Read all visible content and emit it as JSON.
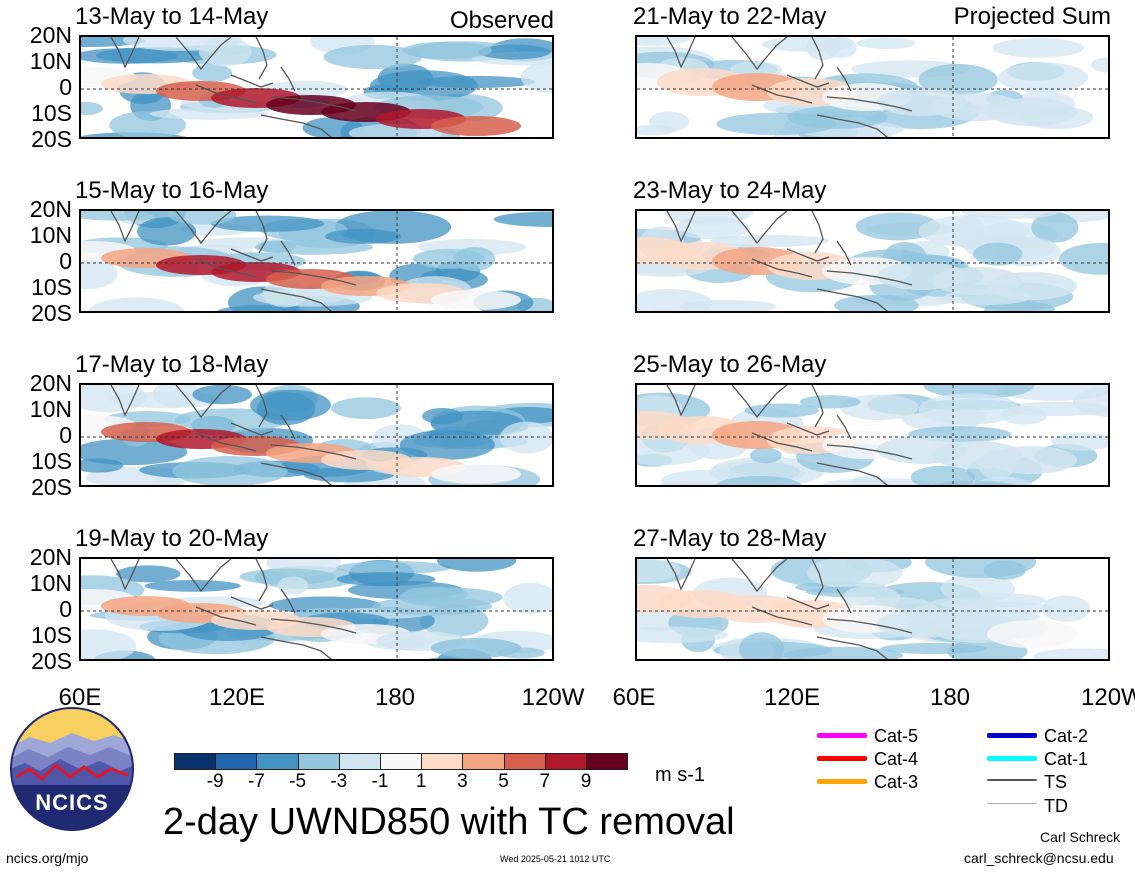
{
  "panels": {
    "left": [
      {
        "title": "13-May to 14-May",
        "tag": "Observed"
      },
      {
        "title": "15-May to 16-May",
        "tag": ""
      },
      {
        "title": "17-May to 18-May",
        "tag": ""
      },
      {
        "title": "19-May to 20-May",
        "tag": ""
      }
    ],
    "right": [
      {
        "title": "21-May to 22-May",
        "tag": "Projected Sum"
      },
      {
        "title": "23-May to 24-May",
        "tag": ""
      },
      {
        "title": "25-May to 26-May",
        "tag": ""
      },
      {
        "title": "27-May to 28-May",
        "tag": ""
      }
    ]
  },
  "lat_labels": [
    "20N",
    "10N",
    "0",
    "10S",
    "20S"
  ],
  "lon_labels": [
    "60E",
    "120E",
    "180",
    "120W"
  ],
  "colorbar": {
    "colors": [
      "#08306b",
      "#2166ac",
      "#4393c3",
      "#92c5de",
      "#d1e5f0",
      "#f7f7f7",
      "#fddbc7",
      "#f4a582",
      "#d6604d",
      "#b2182b",
      "#67001f"
    ],
    "ticks": [
      "-9",
      "-7",
      "-5",
      "-3",
      "-1",
      "1",
      "3",
      "5",
      "7",
      "9"
    ],
    "units": "m s-1"
  },
  "main_title": "2-day UWND850 with TC removal",
  "tc_legend": [
    {
      "label": "Cat-5",
      "color": "#ff00ff"
    },
    {
      "label": "Cat-4",
      "color": "#ff0000"
    },
    {
      "label": "Cat-3",
      "color": "#ffa500"
    },
    {
      "label": "Cat-2",
      "color": "#0000cd"
    },
    {
      "label": "Cat-1",
      "color": "#00ffff"
    },
    {
      "label": "TS",
      "color": "#555555"
    },
    {
      "label": "TD",
      "color": "#aaaaaa"
    }
  ],
  "logo_text": "NCICS",
  "footer": {
    "left": "ncics.org/mjo",
    "center": "Wed 2025-05-21 1012 UTC",
    "author": "Carl Schreck",
    "email": "carl_schreck@ncsu.edu"
  }
}
